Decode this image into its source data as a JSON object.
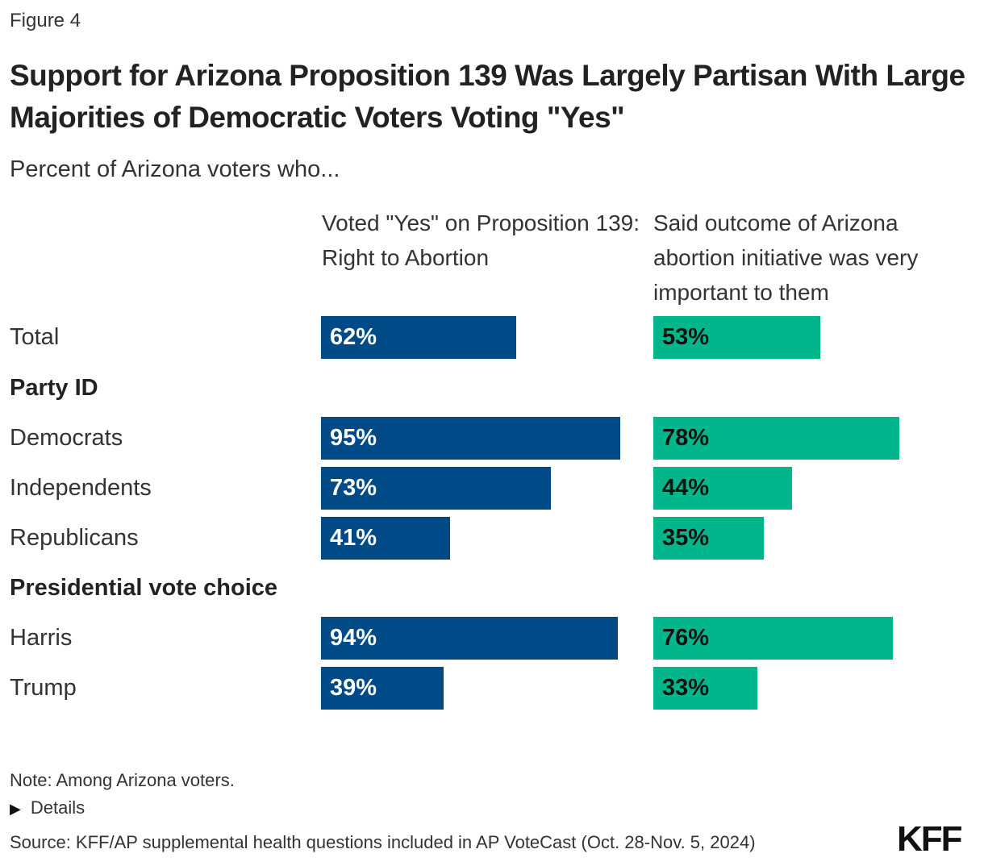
{
  "figure_label": "Figure 4",
  "chart_data": {
    "type": "bar",
    "title": "Support for Arizona Proposition 139 Was Largely Partisan With Large Majorities of Democratic Voters Voting \"Yes\"",
    "subtitle": "Percent of Arizona voters who...",
    "xlim": [
      0,
      100
    ],
    "grid": false,
    "colors": {
      "voted_yes": "#004a87",
      "very_important": "#00b68a"
    },
    "rows": [
      {
        "label": "Total",
        "type": "category",
        "values": [
          62,
          53
        ],
        "data_labels": [
          "62%",
          "53%"
        ]
      },
      {
        "label": "Party ID",
        "type": "group"
      },
      {
        "label": "Democrats",
        "type": "category",
        "values": [
          95,
          78
        ],
        "data_labels": [
          "95%",
          "78%"
        ]
      },
      {
        "label": "Independents",
        "type": "category",
        "values": [
          73,
          44
        ],
        "data_labels": [
          "73%",
          "44%"
        ]
      },
      {
        "label": "Republicans",
        "type": "category",
        "values": [
          41,
          35
        ],
        "data_labels": [
          "41%",
          "35%"
        ]
      },
      {
        "label": "Presidential vote choice",
        "type": "group"
      },
      {
        "label": "Harris",
        "type": "category",
        "values": [
          94,
          76
        ],
        "data_labels": [
          "94%",
          "76%"
        ]
      },
      {
        "label": "Trump",
        "type": "category",
        "values": [
          39,
          33
        ],
        "data_labels": [
          "39%",
          "33%"
        ]
      }
    ],
    "series": [
      {
        "name": "Voted \"Yes\" on Proposition 139: Right to Abortion"
      },
      {
        "name": "Said outcome of Arizona abortion initiative was very important to them"
      }
    ]
  },
  "footer": {
    "note": "Note: Among Arizona voters.",
    "details": "Details",
    "details_icon": "triangle-right-icon",
    "source": "Source: KFF/AP supplemental health questions included in AP VoteCast (Oct. 28-Nov. 5, 2024)",
    "logo": "KFF"
  }
}
